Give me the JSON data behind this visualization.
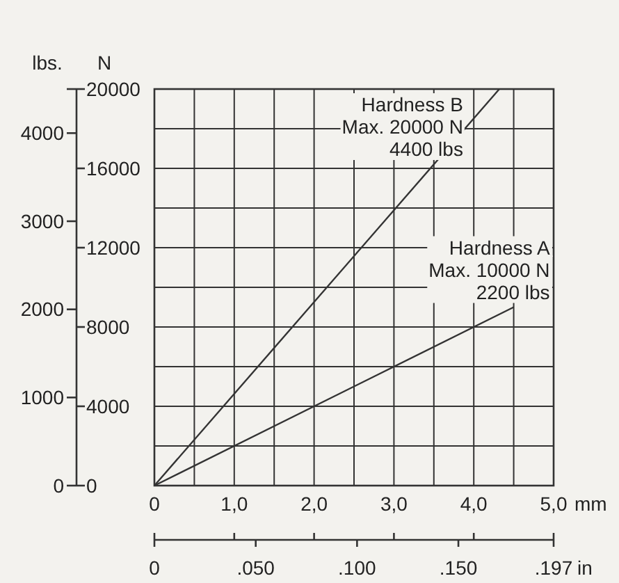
{
  "chart_data": {
    "type": "line",
    "xlabel": "mm",
    "ylabel": "N",
    "y2label": "lbs.",
    "x2label": "in",
    "xlim": [
      0,
      5
    ],
    "xticks": [
      0,
      {
        "value": 0.5,
        "label": null
      },
      {
        "value": 1,
        "label": "1,0"
      },
      {
        "value": 1.5,
        "label": null
      },
      {
        "value": 2,
        "label": "2,0"
      },
      {
        "value": 2.5,
        "label": null
      },
      {
        "value": 3,
        "label": "3,0"
      },
      {
        "value": 3.5,
        "label": null
      },
      {
        "value": 4,
        "label": "4,0"
      },
      {
        "value": 4.5,
        "label": null
      },
      {
        "value": 5,
        "label": "5,0"
      }
    ],
    "ylim": [
      0,
      20000
    ],
    "yticks": [
      0,
      {
        "value": 2000,
        "label": null
      },
      4000,
      {
        "value": 6000,
        "label": null
      },
      8000,
      {
        "value": 10000,
        "label": null
      },
      12000,
      {
        "value": 14000,
        "label": null
      },
      16000,
      {
        "value": 18000,
        "label": null
      },
      20000
    ],
    "y2lim": [
      0,
      4500
    ],
    "y2ticks": [
      0,
      1000,
      2000,
      3000,
      4000
    ],
    "x2lim": [
      0,
      0.197
    ],
    "x2ticks": [
      0,
      {
        "value": 0.05,
        "label": ".050"
      },
      {
        "value": 0.1,
        "label": ".100"
      },
      {
        "value": 0.15,
        "label": ".150"
      },
      {
        "value": 0.197,
        "label": ".197"
      }
    ],
    "grid": true,
    "marker": "none",
    "line_style": "solid",
    "series": [
      {
        "color": "#333333",
        "x": [
          0,
          4.32
        ],
        "values": [
          0,
          20000
        ]
      },
      {
        "color": "#333333",
        "x": [
          0,
          4.5
        ],
        "values": [
          0,
          9000
        ]
      }
    ],
    "annotations": [
      {
        "text": "Hardness B\nMax. 20000 N\n4400 lbs",
        "x": 4.32,
        "y": 20000
      },
      {
        "text": "Hardness A\nMax. 10000 N\n2200 lbs",
        "x": 4.5,
        "y": 9000
      }
    ]
  }
}
